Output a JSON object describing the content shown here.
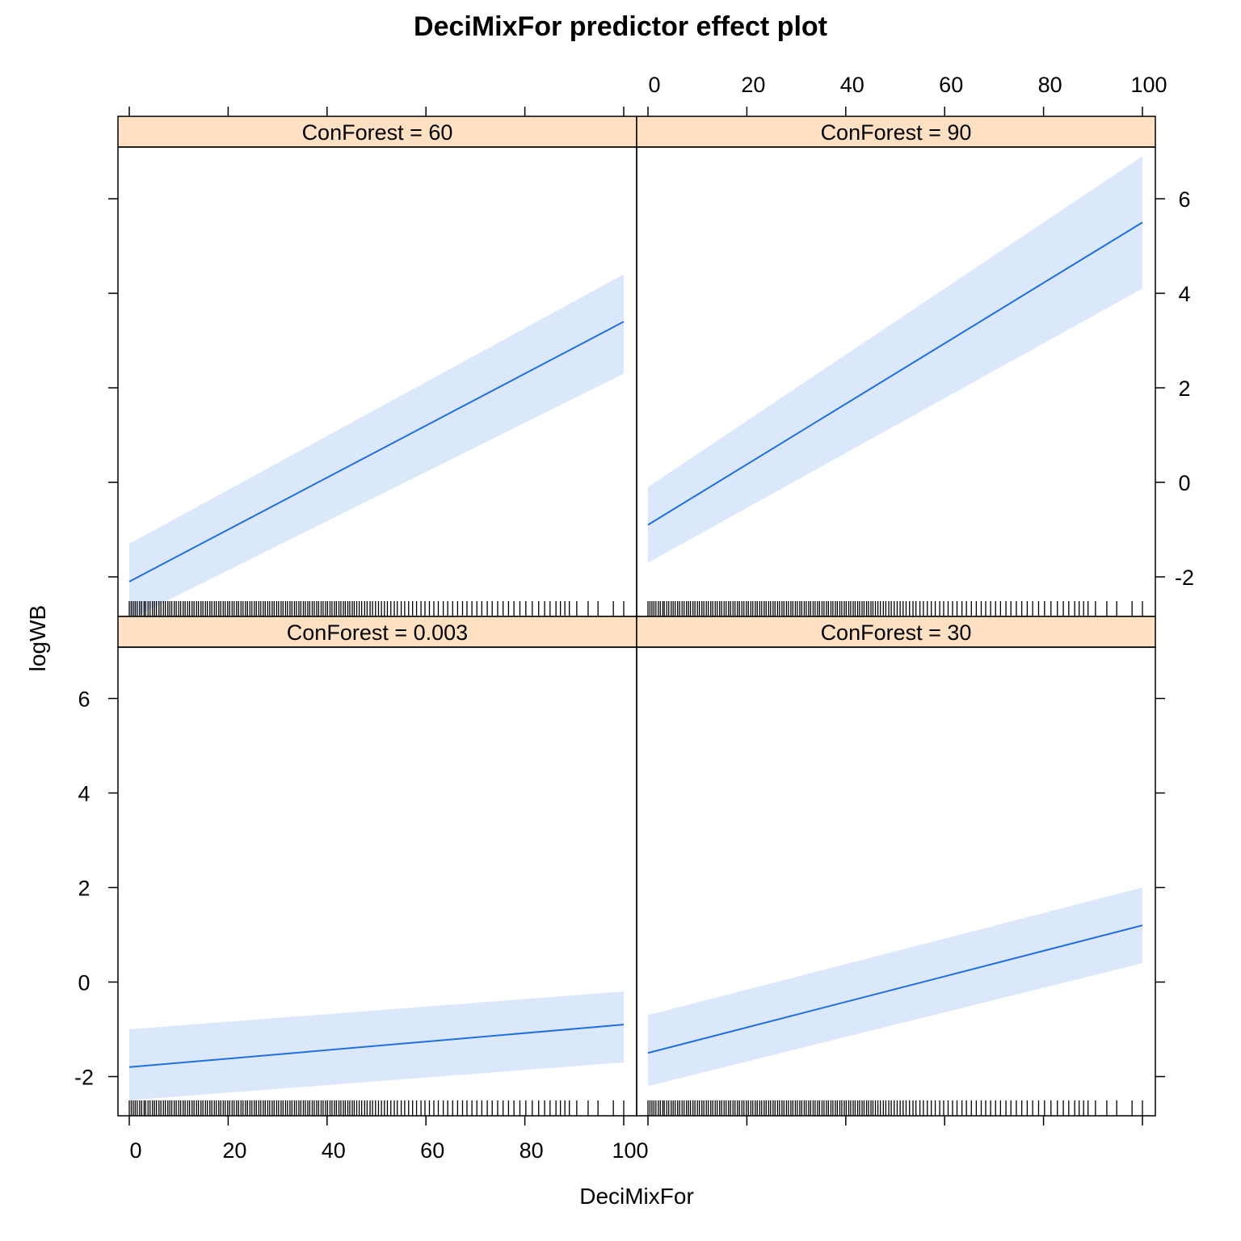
{
  "chart_data": {
    "type": "line",
    "title": "DeciMixFor predictor effect plot",
    "xlabel": "DeciMixFor",
    "ylabel": "logWB",
    "xlim": [
      0,
      100
    ],
    "ylim": [
      -2.8,
      7.0
    ],
    "xticks": [
      0,
      20,
      40,
      60,
      80,
      100
    ],
    "yticks": [
      -2,
      0,
      2,
      4,
      6
    ],
    "xtick_labels": [
      "0",
      "20",
      "40",
      "60",
      "80",
      "100"
    ],
    "ytick_labels": [
      "-2",
      "0",
      "2",
      "4",
      "6"
    ],
    "colors": {
      "line": "#1f6fe0",
      "band": "#dbe7fb",
      "strip": "#ffe0c2"
    },
    "panels": [
      {
        "strip_label": "ConForest = 60",
        "x": [
          0,
          100
        ],
        "fit": [
          -2.1,
          3.4
        ],
        "lower": [
          -2.9,
          2.3
        ],
        "upper": [
          -1.3,
          4.4
        ]
      },
      {
        "strip_label": "ConForest = 90",
        "x": [
          0,
          100
        ],
        "fit": [
          -0.9,
          5.5
        ],
        "lower": [
          -1.7,
          4.1
        ],
        "upper": [
          -0.1,
          6.9
        ]
      },
      {
        "strip_label": "ConForest = 0.003",
        "x": [
          0,
          100
        ],
        "fit": [
          -1.8,
          -0.9
        ],
        "lower": [
          -2.5,
          -1.7
        ],
        "upper": [
          -1.0,
          -0.2
        ]
      },
      {
        "strip_label": "ConForest = 30",
        "x": [
          0,
          100
        ],
        "fit": [
          -1.5,
          1.2
        ],
        "lower": [
          -2.2,
          0.4
        ],
        "upper": [
          -0.7,
          2.0
        ]
      }
    ],
    "rug_x": [
      0,
      0.4,
      0.8,
      1.2,
      1.6,
      2.1,
      2.5,
      3.0,
      3.3,
      3.8,
      4.2,
      4.7,
      5.1,
      5.5,
      6.0,
      6.4,
      6.9,
      7.3,
      7.8,
      8.2,
      8.6,
      9.1,
      9.5,
      10.0,
      10.4,
      10.9,
      11.3,
      11.8,
      12.2,
      12.7,
      13.1,
      13.6,
      14.0,
      14.5,
      14.9,
      15.4,
      15.8,
      16.3,
      16.7,
      17.2,
      17.6,
      18.1,
      18.5,
      19.0,
      19.4,
      19.9,
      20.3,
      20.8,
      21.2,
      21.7,
      22.1,
      22.6,
      23.0,
      23.5,
      23.9,
      24.4,
      24.8,
      25.3,
      25.7,
      26.2,
      26.6,
      27.1,
      27.5,
      28.0,
      28.4,
      28.9,
      29.3,
      29.8,
      30.2,
      30.7,
      31.1,
      31.6,
      32.0,
      32.5,
      32.9,
      33.4,
      33.8,
      34.3,
      34.7,
      35.2,
      35.6,
      36.1,
      36.5,
      37.0,
      37.4,
      37.9,
      38.3,
      38.8,
      39.2,
      39.7,
      40.1,
      40.6,
      41.0,
      41.5,
      41.9,
      42.4,
      42.8,
      43.3,
      43.7,
      44.2,
      44.6,
      45.1,
      45.5,
      46.0,
      46.5,
      47.0,
      47.6,
      48.1,
      48.7,
      49.2,
      49.8,
      50.4,
      51.0,
      51.6,
      52.2,
      52.9,
      53.6,
      54.2,
      55.0,
      55.7,
      56.5,
      57.3,
      58.1,
      59.0,
      59.8,
      60.7,
      61.6,
      62.5,
      63.5,
      64.4,
      65.4,
      66.4,
      67.4,
      68.3,
      69.3,
      70.3,
      71.3,
      72.4,
      73.4,
      74.5,
      75.6,
      76.7,
      77.8,
      79.0,
      80.2,
      81.5,
      82.8,
      84.0,
      85.1,
      86.3,
      87.2,
      88.1,
      89.0,
      90.5,
      92.8,
      94.8,
      97.9,
      100
    ]
  }
}
